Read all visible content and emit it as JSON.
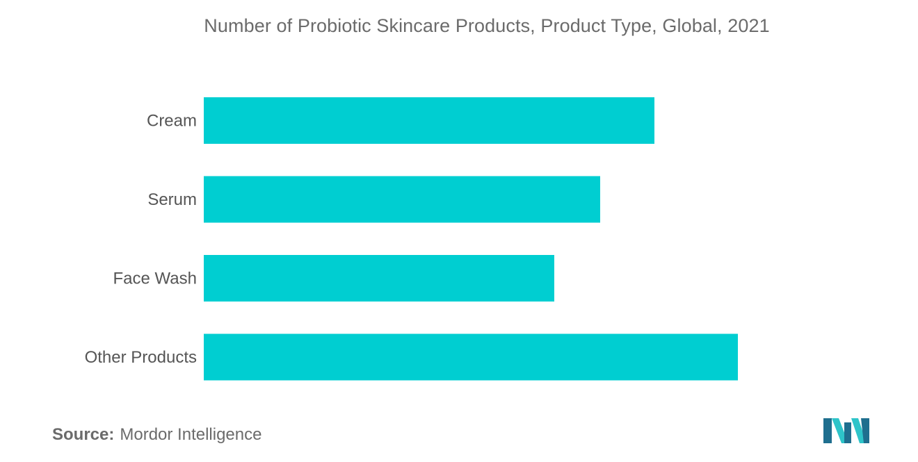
{
  "chart_data": {
    "type": "bar",
    "orientation": "horizontal",
    "title": "Number of Probiotic Skincare Products, Product Type, Global, 2021",
    "categories": [
      "Cream",
      "Serum",
      "Face Wash",
      "Other Products"
    ],
    "values": [
      54,
      47.5,
      42,
      64
    ],
    "xlim": [
      0,
      70
    ],
    "xlabel": "",
    "ylabel": "",
    "grid": false,
    "legend": "none",
    "axis_ticks_shown": false,
    "bar_color": "#00ced1"
  },
  "source": {
    "label": "Source:",
    "text": "Mordor Intelligence"
  },
  "colors": {
    "bar": "#00ced1",
    "title": "#6b6b6b",
    "label": "#555555",
    "logo_dark": "#1f6f8f",
    "logo_light": "#2ec4c9"
  },
  "logo": {
    "icon": "mordor-intelligence-logo-icon"
  }
}
